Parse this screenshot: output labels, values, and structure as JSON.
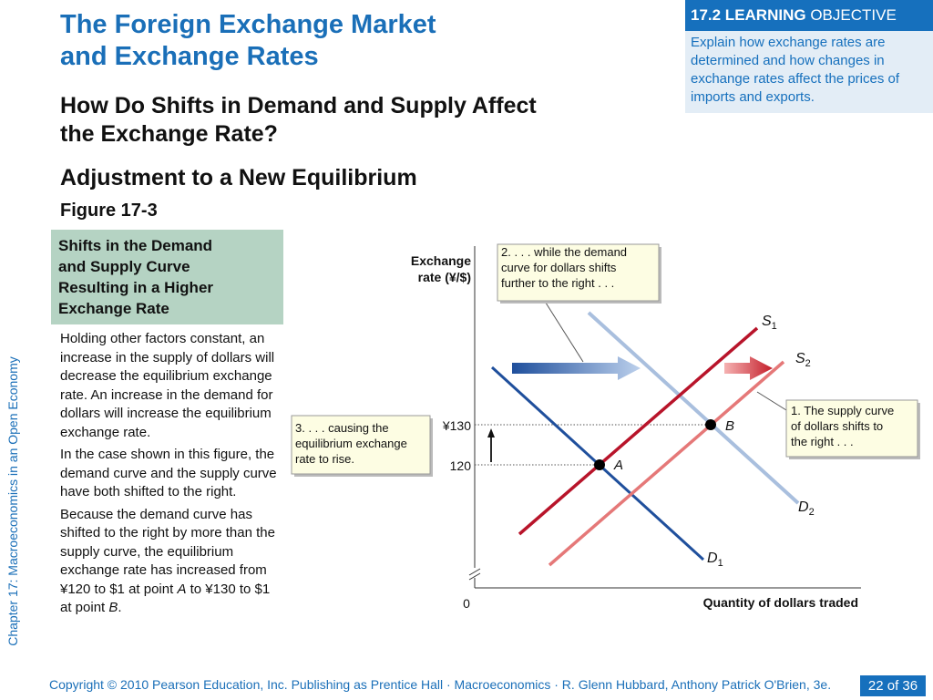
{
  "slide": {
    "title": [
      "The Foreign Exchange Market",
      "and Exchange Rates"
    ],
    "subtitle": [
      "How Do Shifts in Demand and Supply Affect",
      "the Exchange Rate?"
    ],
    "heading": "Adjustment to a New Equilibrium",
    "figure_label": "Figure 17-3"
  },
  "learning_objective": {
    "number": "17.2 LEARNING",
    "word": "OBJECTIVE",
    "text": "Explain how exchange rates are determined and how changes in exchange rates affect the prices of imports and exports."
  },
  "caption_box": [
    "Shifts in the Demand",
    "and Supply Curve",
    "Resulting in a Higher",
    "Exchange Rate"
  ],
  "body": {
    "p1": "Holding other factors constant, an increase in the supply of dollars will decrease the equilibrium exchange rate. An increase in the demand for dollars will increase the equilibrium exchange rate.",
    "p2": "In the case shown in this figure, the demand curve and the supply curve have both shifted to the right.",
    "p3a": "Because the demand curve has shifted to the right by more than the supply curve, the equilibrium exchange rate has increased from ¥120 to $1 at point ",
    "p3_a": "A",
    "p3b": " to ¥130 to $1 at point ",
    "p3_b": "B",
    "p3c": "."
  },
  "sidebar_text": "Chapter 17:  Macroeconomics in an Open Economy",
  "footer": {
    "copyright": "Copyright © 2010 Pearson Education, Inc. Publishing as Prentice Hall · Macroeconomics · R. Glenn Hubbard, Anthony Patrick O'Brien, 3e.",
    "page": "22 of 36"
  },
  "chart_data": {
    "type": "line",
    "ylabel": [
      "Exchange",
      "rate (¥/$)"
    ],
    "xlabel": "Quantity of dollars traded",
    "origin_label": "0",
    "y_ticks": [
      {
        "label": "¥130",
        "value": 130
      },
      {
        "label": "120",
        "value": 120
      }
    ],
    "series": [
      {
        "name": "S",
        "sub": "1",
        "color": "#b8142a",
        "kind": "supply"
      },
      {
        "name": "S",
        "sub": "2",
        "color": "#e57878",
        "kind": "supply"
      },
      {
        "name": "D",
        "sub": "1",
        "color": "#1f4f9c",
        "kind": "demand"
      },
      {
        "name": "D",
        "sub": "2",
        "color": "#a9bfde",
        "kind": "demand"
      }
    ],
    "points": [
      {
        "label": "A",
        "y": 120,
        "curves": [
          "S1",
          "D1"
        ]
      },
      {
        "label": "B",
        "y": 130,
        "curves": [
          "S2",
          "D2"
        ]
      }
    ],
    "annotations": [
      [
        "1. The supply curve",
        "of dollars shifts to",
        "the right . . ."
      ],
      [
        "2.  . . . while the demand",
        "curve for dollars shifts",
        "further to the right . . ."
      ],
      [
        "3.  . . . causing the",
        "equilibrium exchange",
        "rate to rise."
      ]
    ],
    "colors": {
      "demand_arrow": "#1f4f9c",
      "supply_arrow": "#c41e2a",
      "callout_bg": "#fdfde3"
    }
  }
}
